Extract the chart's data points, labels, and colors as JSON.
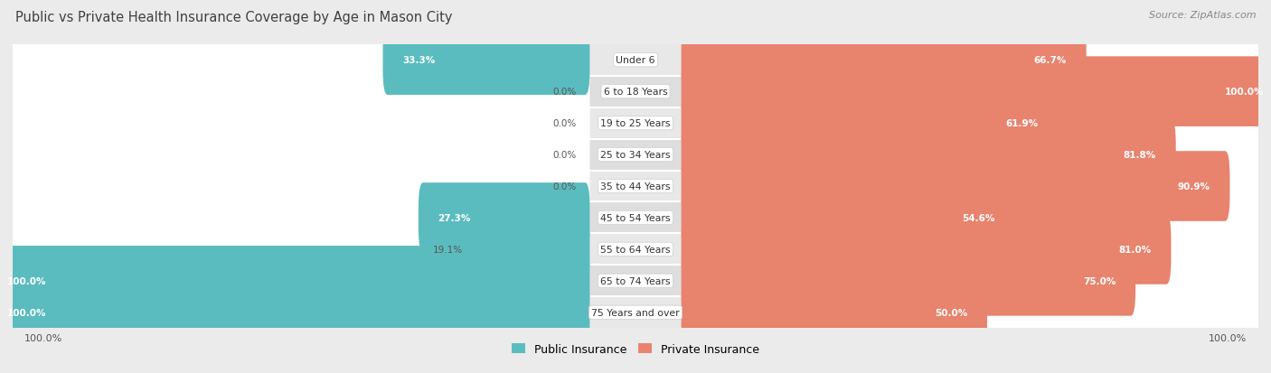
{
  "title": "Public vs Private Health Insurance Coverage by Age in Mason City",
  "source": "Source: ZipAtlas.com",
  "categories": [
    "Under 6",
    "6 to 18 Years",
    "19 to 25 Years",
    "25 to 34 Years",
    "35 to 44 Years",
    "45 to 54 Years",
    "55 to 64 Years",
    "65 to 74 Years",
    "75 Years and over"
  ],
  "public_values": [
    33.3,
    0.0,
    0.0,
    0.0,
    0.0,
    27.3,
    19.1,
    100.0,
    100.0
  ],
  "private_values": [
    66.7,
    100.0,
    61.9,
    81.8,
    90.9,
    54.6,
    81.0,
    75.0,
    50.0
  ],
  "public_color": "#5bbcbf",
  "private_color": "#e8836e",
  "bg_color": "#ebebeb",
  "row_light_color": "#e8e8e8",
  "row_dark_color": "#dedede",
  "white_bar_color": "#ffffff",
  "title_color": "#404040",
  "label_inside_color": "#ffffff",
  "label_outside_color": "#555555",
  "legend_public": "Public Insurance",
  "legend_private": "Private Insurance",
  "max_value": 100.0
}
